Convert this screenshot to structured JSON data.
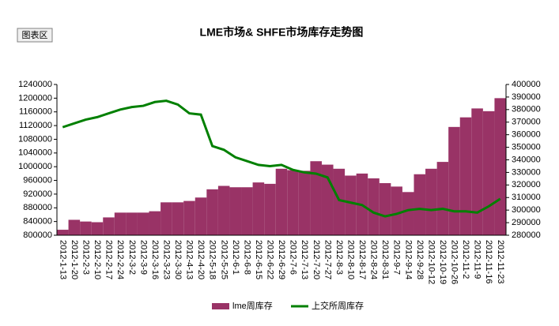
{
  "chart_data": {
    "type": "bar_line",
    "title": "LME市场& SHFE市场库存走势图",
    "button": "图表区",
    "categories": [
      "2012-1-13",
      "2012-1-20",
      "2012-2-3",
      "2012-2-10",
      "2012-2-17",
      "2012-2-24",
      "2012-3-2",
      "2012-3-9",
      "2012-3-16",
      "2012-3-23",
      "2012-3-30",
      "2012-4-13",
      "2012-4-20",
      "2012-5-18",
      "2012-5-25",
      "2012-6-1",
      "2012-6-8",
      "2012-6-15",
      "2012-6-22",
      "2012-6-29",
      "2012-7-6",
      "2012-7-13",
      "2012-7-20",
      "2012-7-27",
      "2012-8-3",
      "2012-8-10",
      "2012-8-17",
      "2012-8-24",
      "2012-8-31",
      "2012-9-7",
      "2012-9-14",
      "2012-9-28",
      "2012-10-12",
      "2012-10-19",
      "2012-10-26",
      "2012-11-2",
      "2012-11-9",
      "2012-11-16",
      "2012-11-23"
    ],
    "series": [
      {
        "name": "lme周库存",
        "color": "#993366",
        "type": "bar",
        "values": [
          816000,
          845000,
          840000,
          838000,
          852000,
          866000,
          866000,
          866000,
          870000,
          896000,
          896000,
          900000,
          910000,
          934000,
          944000,
          940000,
          940000,
          954000,
          950000,
          994000,
          990000,
          988000,
          1016000,
          1006000,
          994000,
          974000,
          980000,
          966000,
          952000,
          942000,
          926000,
          978000,
          994000,
          1014000,
          1116000,
          1144000,
          1170000,
          1162000,
          1200000
        ]
      },
      {
        "name": "上交所周库存",
        "color": "#008000",
        "type": "line",
        "axis": "y2",
        "values": [
          366000,
          369000,
          372000,
          374000,
          377000,
          380000,
          382000,
          383000,
          386000,
          387000,
          384000,
          377000,
          376000,
          351000,
          348000,
          342000,
          339000,
          336000,
          335000,
          336000,
          332000,
          330000,
          329000,
          326000,
          308000,
          306000,
          304000,
          298000,
          295000,
          297000,
          300000,
          301000,
          300000,
          301000,
          299000,
          299000,
          298000,
          303000,
          309000
        ]
      }
    ],
    "ylim": [
      800000,
      1240000
    ],
    "yticks": [
      800000,
      840000,
      880000,
      920000,
      960000,
      1000000,
      1040000,
      1080000,
      1120000,
      1160000,
      1200000,
      1240000
    ],
    "y2lim": [
      280000,
      400000
    ],
    "y2ticks": [
      280000,
      290000,
      300000,
      310000,
      320000,
      330000,
      340000,
      350000,
      360000,
      370000,
      380000,
      390000,
      400000
    ],
    "legend": "bottom"
  }
}
